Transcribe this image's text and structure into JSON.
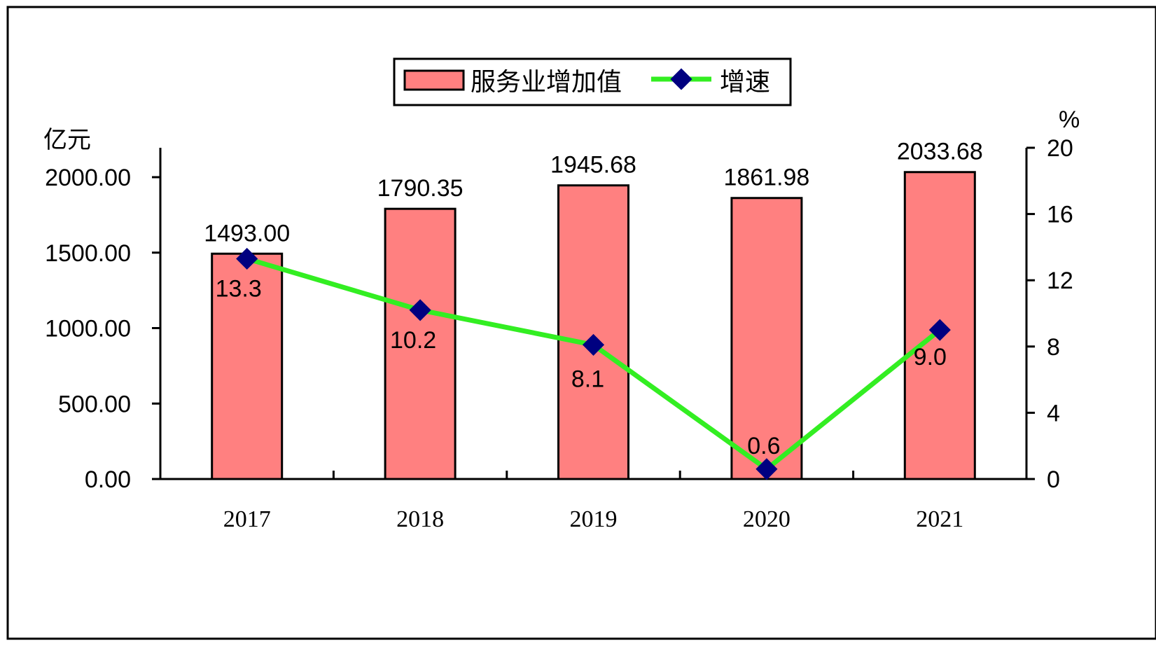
{
  "chart_data": {
    "type": "bar",
    "categories": [
      "2017",
      "2018",
      "2019",
      "2020",
      "2021"
    ],
    "series": [
      {
        "name": "服务业增加值",
        "type": "bar",
        "axis": "left",
        "values": [
          1493.0,
          1790.35,
          1945.68,
          1861.98,
          2033.68
        ],
        "labels": [
          "1493.00",
          "1790.35",
          "1945.68",
          "1861.98",
          "2033.68"
        ],
        "color": "#ff8080"
      },
      {
        "name": "增速",
        "type": "line",
        "axis": "right",
        "values": [
          13.3,
          10.2,
          8.1,
          0.6,
          9.0
        ],
        "labels": [
          "13.3",
          "10.2",
          "8.1",
          "0.6",
          "9.0"
        ],
        "color": "#33ee22",
        "marker_color": "#000080"
      }
    ],
    "y_left": {
      "unit": "亿元",
      "range": [
        0,
        2200
      ],
      "ticks": [
        0,
        500,
        1000,
        1500,
        2000
      ],
      "tick_labels": [
        "0.00",
        "500.00",
        "1000.00",
        "1500.00",
        "2000.00"
      ]
    },
    "y_right": {
      "unit": "%",
      "range": [
        0,
        20
      ],
      "ticks": [
        0,
        4,
        8,
        12,
        16,
        20
      ],
      "tick_labels": [
        "0",
        "4",
        "8",
        "12",
        "16",
        "20"
      ]
    },
    "legend": {
      "position": "top-center"
    },
    "grid": false
  }
}
